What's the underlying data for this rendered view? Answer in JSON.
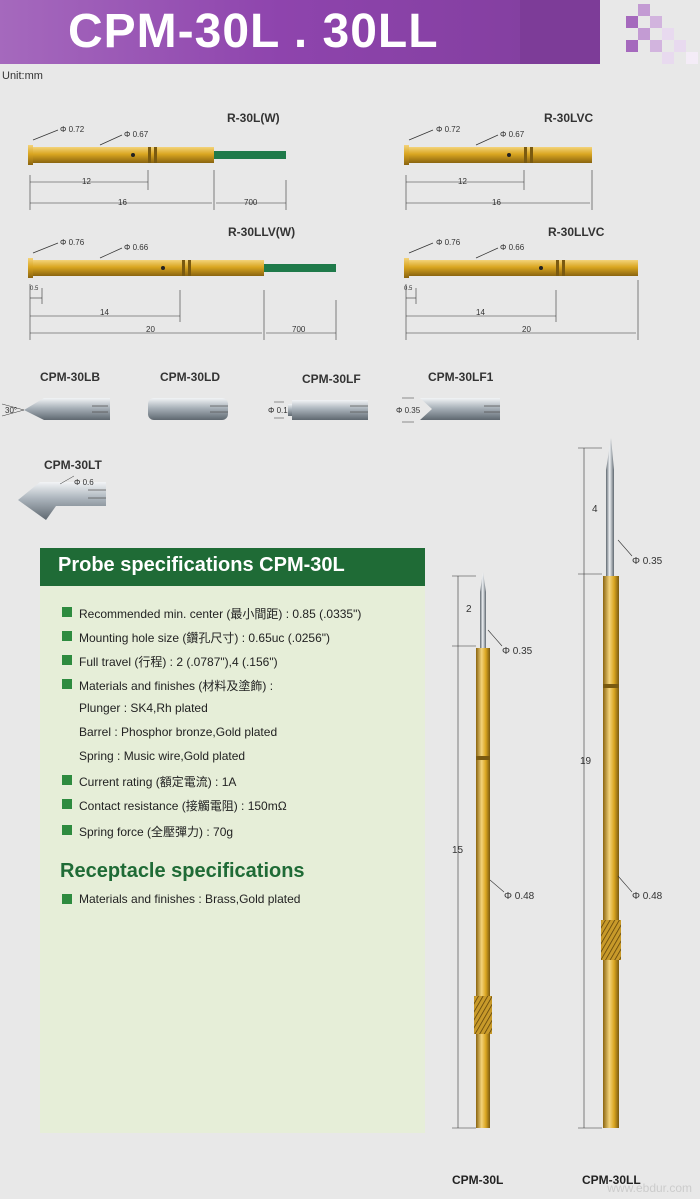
{
  "header": {
    "title": "CPM-30L . 30LL"
  },
  "unit": "Unit:mm",
  "probes": {
    "r30lw": {
      "name": "R-30L(W)",
      "d1": "Φ 0.72",
      "d2": "Φ 0.67",
      "len1": "12",
      "len2": "16",
      "len3": "700"
    },
    "r30lvc": {
      "name": "R-30LVC",
      "d1": "Φ 0.72",
      "d2": "Φ 0.67",
      "len1": "12",
      "len2": "16"
    },
    "r30llvw": {
      "name": "R-30LLV(W)",
      "d1": "Φ 0.76",
      "d2": "Φ 0.66",
      "small": "0.5",
      "len1": "14",
      "len2": "20",
      "len3": "700"
    },
    "r30llvc": {
      "name": "R-30LLVC",
      "d1": "Φ 0.76",
      "d2": "Φ 0.66",
      "small": "0.5",
      "len1": "14",
      "len2": "20"
    }
  },
  "tips": {
    "lb": {
      "name": "CPM-30LB",
      "angle": "30°"
    },
    "ld": {
      "name": "CPM-30LD"
    },
    "lf": {
      "name": "CPM-30LF",
      "dia": "Φ 0.1"
    },
    "lf1": {
      "name": "CPM-30LF1",
      "dia": "Φ 0.35"
    },
    "lt": {
      "name": "CPM-30LT",
      "dia": "Φ 0.6"
    }
  },
  "spec": {
    "title": "Probe specifications CPM-30L",
    "lines": [
      "Recommended min. center (最小間距) : 0.85 (.0335\")",
      "Mounting hole size (鑽孔尺寸) : 0.65uc (.0256\")",
      "Full travel (行程) : 2 (.0787\"),4 (.156\")",
      "Materials and finishes (材料及塗飾) :",
      "Plunger : SK4,Rh plated",
      "Barrel : Phosphor bronze,Gold plated",
      "Spring : Music wire,Gold plated",
      "Current rating (額定電流) : 1A",
      "Contact resistance (接觸電阻) : 150mΩ",
      "Spring force (全壓彈力) : 70g"
    ],
    "rec_title": "Receptacle specifications",
    "rec_line": "Materials and finishes : Brass,Gold plated"
  },
  "vertical": {
    "cpm30l": {
      "name": "CPM-30L",
      "travel": "2",
      "tip": "Φ 0.35",
      "body": "15",
      "barrel": "Φ 0.48"
    },
    "cpm30ll": {
      "name": "CPM-30LL",
      "travel": "4",
      "tip": "Φ 0.35",
      "body": "19",
      "barrel": "Φ 0.48"
    }
  },
  "watermark": "www.ebdur.com",
  "colors": {
    "header": "#8e44ad",
    "gold": "#d9a520",
    "green": "#1f6b36",
    "wire": "#1f7a4a"
  }
}
